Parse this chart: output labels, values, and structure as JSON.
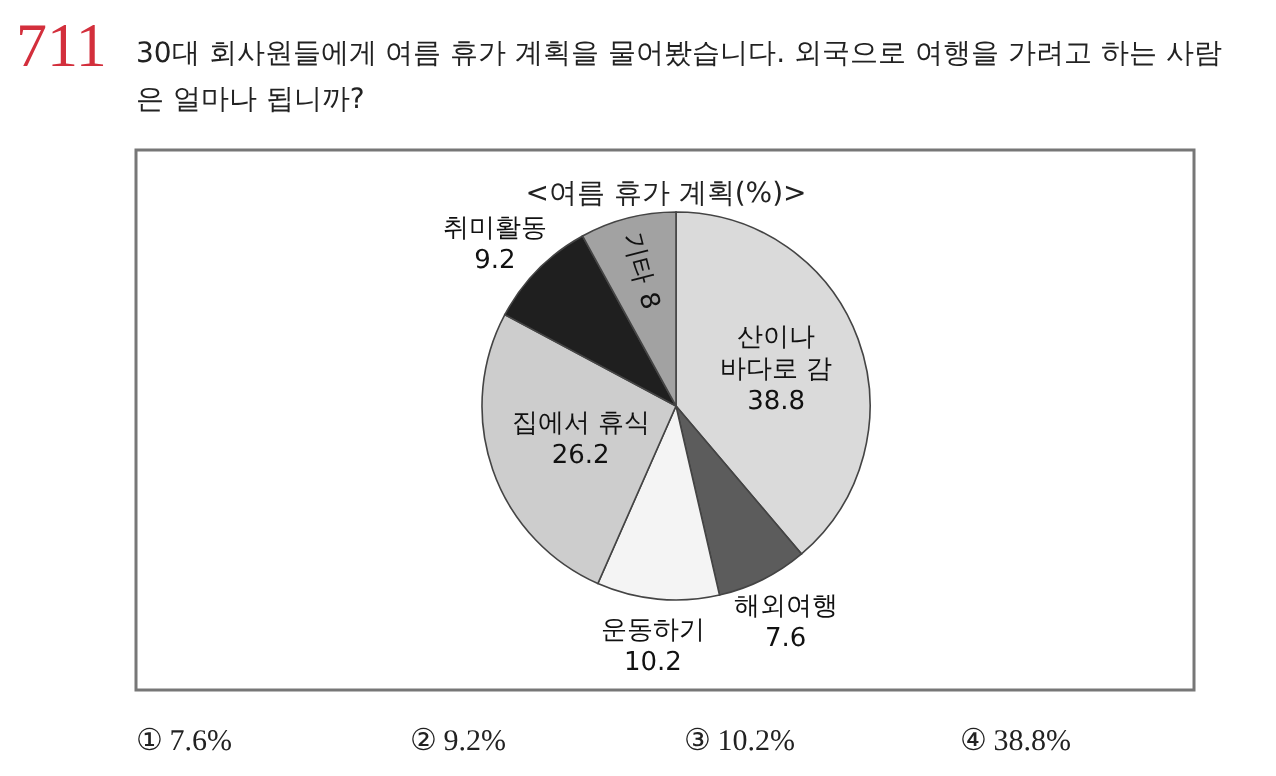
{
  "chart_data": {
    "type": "pie",
    "title": "<여름 휴가 계획(%)>",
    "categories": [
      "산이나 바다로 감",
      "해외여행",
      "운동하기",
      "집에서 휴식",
      "취미활동",
      "기타"
    ],
    "values": [
      38.8,
      7.6,
      10.2,
      26.2,
      9.2,
      8
    ],
    "colors": [
      "#dadada",
      "#5c5c5c",
      "#f4f4f4",
      "#cdcdcd",
      "#1f1f1f",
      "#a2a2a2"
    ],
    "data_labels": true,
    "annotations": [
      "711",
      "30대 회사원들에게 여름 휴가 계획을 물어봤습니다. 외국으로 여행을 가려고 하는 사람은 얼마나 됩니까?",
      "① 7.6%",
      "② 9.2%",
      "③ 10.2%",
      "④ 38.8%"
    ]
  }
}
